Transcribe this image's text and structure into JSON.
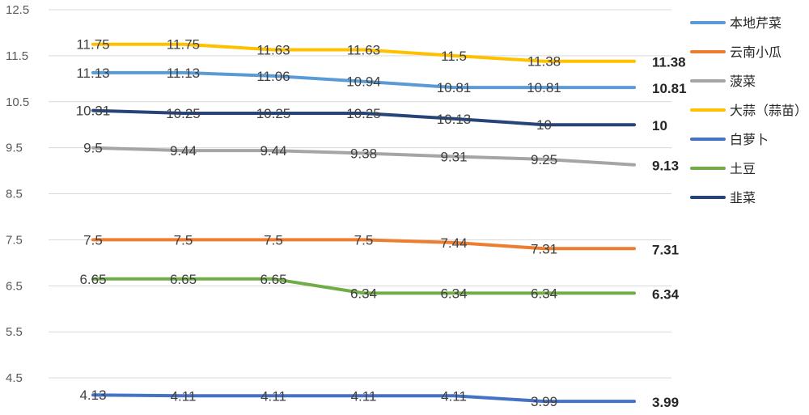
{
  "chart_data": {
    "type": "line",
    "title": "",
    "xlabel": "",
    "ylabel": "",
    "ylim": [
      3.5,
      12.5
    ],
    "yticks": [
      4.5,
      5.5,
      6.5,
      7.5,
      8.5,
      9.5,
      10.5,
      11.5,
      12.5
    ],
    "grid": true,
    "legend_position": "right",
    "x": [
      1,
      2,
      3,
      4,
      5,
      6,
      7
    ],
    "series": [
      {
        "name": "本地芹菜",
        "color": "#5B9BD5",
        "values": [
          11.13,
          11.13,
          11.06,
          10.94,
          10.81,
          10.81,
          10.81
        ],
        "labels": [
          "11.13",
          "11.13",
          "11.06",
          "10.94",
          "10.81",
          "10.81",
          "10.81"
        ]
      },
      {
        "name": "云南小瓜",
        "color": "#ED7D31",
        "values": [
          7.5,
          7.5,
          7.5,
          7.5,
          7.44,
          7.31,
          7.31
        ],
        "labels": [
          "7.5",
          "7.5",
          "7.5",
          "7.5",
          "7.44",
          "7.31",
          "7.31"
        ]
      },
      {
        "name": "菠菜",
        "color": "#A5A5A5",
        "values": [
          9.5,
          9.44,
          9.44,
          9.38,
          9.31,
          9.25,
          9.13
        ],
        "labels": [
          "9.5",
          "9.44",
          "9.44",
          "9.38",
          "9.31",
          "9.25",
          "9.13"
        ]
      },
      {
        "name": "大蒜（蒜苗）",
        "color": "#FFC000",
        "values": [
          11.75,
          11.75,
          11.63,
          11.63,
          11.5,
          11.38,
          11.38
        ],
        "labels": [
          "11.75",
          "11.75",
          "11.63",
          "11.63",
          "11.5",
          "11.38",
          "11.38"
        ]
      },
      {
        "name": "白萝卜",
        "color": "#4472C4",
        "values": [
          4.13,
          4.11,
          4.11,
          4.11,
          4.11,
          3.99,
          3.99
        ],
        "labels": [
          "4.13",
          "4.11",
          "4.11",
          "4.11",
          "4.11",
          "3.99",
          "3.99"
        ]
      },
      {
        "name": "土豆",
        "color": "#70AD47",
        "values": [
          6.65,
          6.65,
          6.65,
          6.34,
          6.34,
          6.34,
          6.34
        ],
        "labels": [
          "6.65",
          "6.65",
          "6.65",
          "6.34",
          "6.34",
          "6.34",
          "6.34"
        ]
      },
      {
        "name": "韭菜",
        "color": "#264478",
        "values": [
          10.31,
          10.25,
          10.25,
          10.25,
          10.13,
          10,
          10
        ],
        "labels": [
          "10.31",
          "10.25",
          "10.25",
          "10.25",
          "10.13",
          "10",
          "10"
        ]
      }
    ]
  }
}
